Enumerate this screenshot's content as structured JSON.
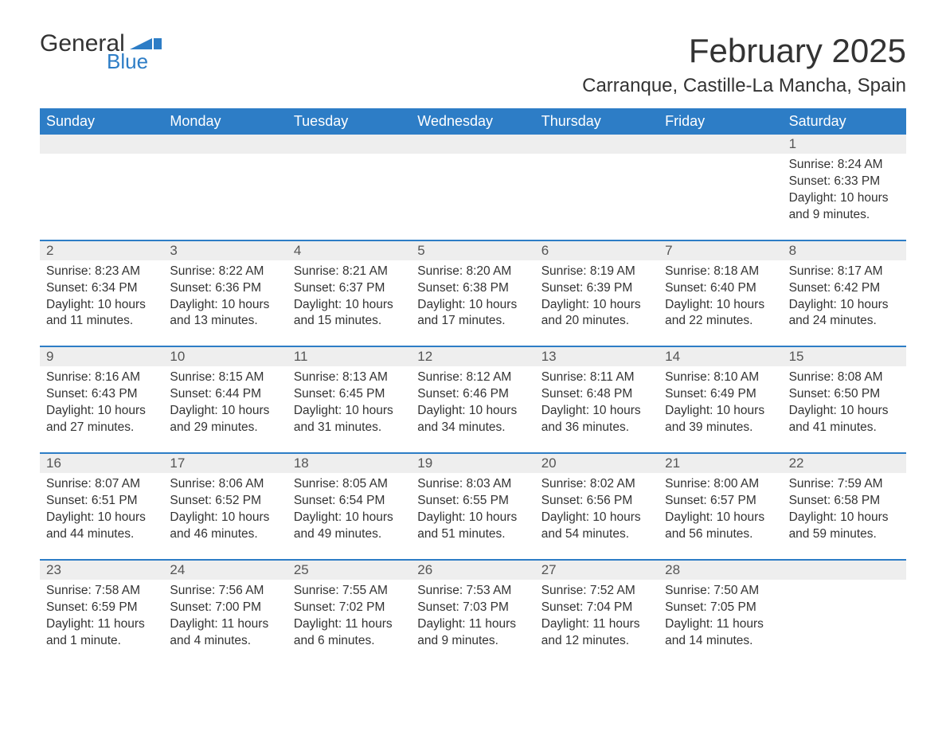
{
  "logo": {
    "text1": "General",
    "text2": "Blue",
    "flag_color": "#2d7dc6"
  },
  "header": {
    "title": "February 2025",
    "location": "Carranque, Castille-La Mancha, Spain"
  },
  "colors": {
    "header_bg": "#2d7dc6",
    "header_text": "#ffffff",
    "daynum_bg": "#eeeeee",
    "week_border": "#2d7dc6",
    "body_text": "#333333",
    "page_bg": "#ffffff"
  },
  "weekdays": [
    "Sunday",
    "Monday",
    "Tuesday",
    "Wednesday",
    "Thursday",
    "Friday",
    "Saturday"
  ],
  "weeks": [
    [
      {
        "day": "",
        "text": ""
      },
      {
        "day": "",
        "text": ""
      },
      {
        "day": "",
        "text": ""
      },
      {
        "day": "",
        "text": ""
      },
      {
        "day": "",
        "text": ""
      },
      {
        "day": "",
        "text": ""
      },
      {
        "day": "1",
        "text": "Sunrise: 8:24 AM\nSunset: 6:33 PM\nDaylight: 10 hours and 9 minutes."
      }
    ],
    [
      {
        "day": "2",
        "text": "Sunrise: 8:23 AM\nSunset: 6:34 PM\nDaylight: 10 hours and 11 minutes."
      },
      {
        "day": "3",
        "text": "Sunrise: 8:22 AM\nSunset: 6:36 PM\nDaylight: 10 hours and 13 minutes."
      },
      {
        "day": "4",
        "text": "Sunrise: 8:21 AM\nSunset: 6:37 PM\nDaylight: 10 hours and 15 minutes."
      },
      {
        "day": "5",
        "text": "Sunrise: 8:20 AM\nSunset: 6:38 PM\nDaylight: 10 hours and 17 minutes."
      },
      {
        "day": "6",
        "text": "Sunrise: 8:19 AM\nSunset: 6:39 PM\nDaylight: 10 hours and 20 minutes."
      },
      {
        "day": "7",
        "text": "Sunrise: 8:18 AM\nSunset: 6:40 PM\nDaylight: 10 hours and 22 minutes."
      },
      {
        "day": "8",
        "text": "Sunrise: 8:17 AM\nSunset: 6:42 PM\nDaylight: 10 hours and 24 minutes."
      }
    ],
    [
      {
        "day": "9",
        "text": "Sunrise: 8:16 AM\nSunset: 6:43 PM\nDaylight: 10 hours and 27 minutes."
      },
      {
        "day": "10",
        "text": "Sunrise: 8:15 AM\nSunset: 6:44 PM\nDaylight: 10 hours and 29 minutes."
      },
      {
        "day": "11",
        "text": "Sunrise: 8:13 AM\nSunset: 6:45 PM\nDaylight: 10 hours and 31 minutes."
      },
      {
        "day": "12",
        "text": "Sunrise: 8:12 AM\nSunset: 6:46 PM\nDaylight: 10 hours and 34 minutes."
      },
      {
        "day": "13",
        "text": "Sunrise: 8:11 AM\nSunset: 6:48 PM\nDaylight: 10 hours and 36 minutes."
      },
      {
        "day": "14",
        "text": "Sunrise: 8:10 AM\nSunset: 6:49 PM\nDaylight: 10 hours and 39 minutes."
      },
      {
        "day": "15",
        "text": "Sunrise: 8:08 AM\nSunset: 6:50 PM\nDaylight: 10 hours and 41 minutes."
      }
    ],
    [
      {
        "day": "16",
        "text": "Sunrise: 8:07 AM\nSunset: 6:51 PM\nDaylight: 10 hours and 44 minutes."
      },
      {
        "day": "17",
        "text": "Sunrise: 8:06 AM\nSunset: 6:52 PM\nDaylight: 10 hours and 46 minutes."
      },
      {
        "day": "18",
        "text": "Sunrise: 8:05 AM\nSunset: 6:54 PM\nDaylight: 10 hours and 49 minutes."
      },
      {
        "day": "19",
        "text": "Sunrise: 8:03 AM\nSunset: 6:55 PM\nDaylight: 10 hours and 51 minutes."
      },
      {
        "day": "20",
        "text": "Sunrise: 8:02 AM\nSunset: 6:56 PM\nDaylight: 10 hours and 54 minutes."
      },
      {
        "day": "21",
        "text": "Sunrise: 8:00 AM\nSunset: 6:57 PM\nDaylight: 10 hours and 56 minutes."
      },
      {
        "day": "22",
        "text": "Sunrise: 7:59 AM\nSunset: 6:58 PM\nDaylight: 10 hours and 59 minutes."
      }
    ],
    [
      {
        "day": "23",
        "text": "Sunrise: 7:58 AM\nSunset: 6:59 PM\nDaylight: 11 hours and 1 minute."
      },
      {
        "day": "24",
        "text": "Sunrise: 7:56 AM\nSunset: 7:00 PM\nDaylight: 11 hours and 4 minutes."
      },
      {
        "day": "25",
        "text": "Sunrise: 7:55 AM\nSunset: 7:02 PM\nDaylight: 11 hours and 6 minutes."
      },
      {
        "day": "26",
        "text": "Sunrise: 7:53 AM\nSunset: 7:03 PM\nDaylight: 11 hours and 9 minutes."
      },
      {
        "day": "27",
        "text": "Sunrise: 7:52 AM\nSunset: 7:04 PM\nDaylight: 11 hours and 12 minutes."
      },
      {
        "day": "28",
        "text": "Sunrise: 7:50 AM\nSunset: 7:05 PM\nDaylight: 11 hours and 14 minutes."
      },
      {
        "day": "",
        "text": ""
      }
    ]
  ]
}
